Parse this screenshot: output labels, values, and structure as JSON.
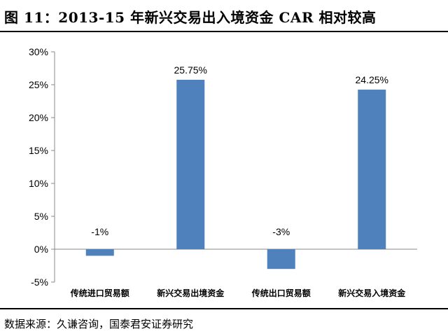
{
  "title": "图 11：2013-15 年新兴交易出入境资金 CAR 相对较高",
  "source": "数据来源：久谦咨询，国泰君安证券研究",
  "chart_data": {
    "type": "bar",
    "categories": [
      "传统进口贸易额",
      "新兴交易出境资金",
      "传统出口贸易额",
      "新兴交易入境资金"
    ],
    "values": [
      -1,
      25.75,
      -3,
      24.25
    ],
    "data_labels": [
      "-1%",
      "25.75%",
      "-3%",
      "24.25%"
    ],
    "yticks": [
      "-5%",
      "0%",
      "5%",
      "10%",
      "15%",
      "20%",
      "25%",
      "30%"
    ],
    "ylim": [
      -5,
      30
    ],
    "bar_color": "#4f81bd",
    "grid": false,
    "legend": "none"
  }
}
